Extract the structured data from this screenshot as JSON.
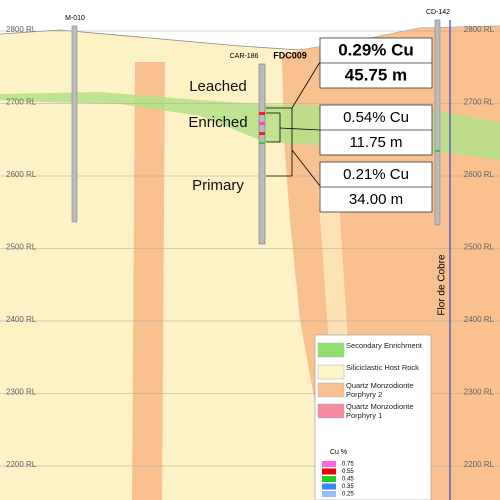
{
  "elevation_labels": [
    "2800 RL",
    "2700 RL",
    "2600 RL",
    "2500 RL",
    "2400 RL",
    "2300 RL",
    "2200 RL"
  ],
  "drill_holes": [
    {
      "label": "M-010"
    },
    {
      "label": "CAR-186"
    },
    {
      "label": "FDC009"
    },
    {
      "label": "CD-142"
    }
  ],
  "zone_labels": [
    "Leached",
    "Enriched",
    "Primary"
  ],
  "intercepts": [
    {
      "grade": "0.29% Cu",
      "length": "45.75 m"
    },
    {
      "grade": "0.54% Cu",
      "length": "11.75 m"
    },
    {
      "grade": "0.21% Cu",
      "length": "34.00 m"
    }
  ],
  "section_line_label": "Flor de Cobre",
  "legend": {
    "items": [
      "Secondary Enrichment",
      "Siliciclastic Host Rock",
      "Quartz Monzodiorite Porphyry 2",
      "Quartz Monzodiorite Porphyry 1"
    ],
    "cu_title": "Cu %",
    "cu_values": [
      "0.75",
      "0.55",
      "0.45",
      "0.35",
      "0.25"
    ]
  }
}
